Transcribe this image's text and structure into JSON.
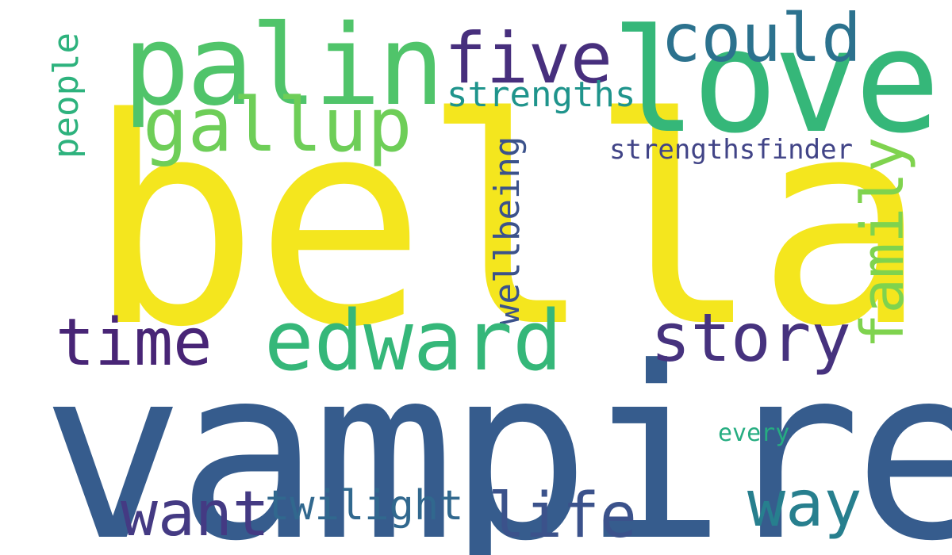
{
  "word_cloud": {
    "words": [
      {
        "key": "bella",
        "text": "bella",
        "color": "#f4e61e",
        "orientation": "horizontal"
      },
      {
        "key": "vampire",
        "text": "vampire",
        "color": "#365c8d",
        "orientation": "horizontal"
      },
      {
        "key": "love",
        "text": "love",
        "color": "#35b779",
        "orientation": "horizontal"
      },
      {
        "key": "palin",
        "text": "palin",
        "color": "#50c46a",
        "orientation": "horizontal"
      },
      {
        "key": "five",
        "text": "five",
        "color": "#472f7d",
        "orientation": "horizontal"
      },
      {
        "key": "could",
        "text": "could",
        "color": "#2c728e",
        "orientation": "horizontal"
      },
      {
        "key": "gallup",
        "text": "gallup",
        "color": "#6ece58",
        "orientation": "horizontal"
      },
      {
        "key": "strengths",
        "text": "strengths",
        "color": "#1f948c",
        "orientation": "horizontal"
      },
      {
        "key": "strengthsfinder",
        "text": "strengthsfinder",
        "color": "#414487",
        "orientation": "horizontal"
      },
      {
        "key": "people",
        "text": "people",
        "color": "#2db27d",
        "orientation": "vertical"
      },
      {
        "key": "wellbeing",
        "text": "wellbeing",
        "color": "#3b528b",
        "orientation": "vertical"
      },
      {
        "key": "family",
        "text": "family",
        "color": "#7fd34e",
        "orientation": "vertical"
      },
      {
        "key": "edward",
        "text": "edward",
        "color": "#35b779",
        "orientation": "horizontal"
      },
      {
        "key": "time",
        "text": "time",
        "color": "#482576",
        "orientation": "horizontal"
      },
      {
        "key": "story",
        "text": "story",
        "color": "#46327e",
        "orientation": "horizontal"
      },
      {
        "key": "want",
        "text": "want",
        "color": "#443a83",
        "orientation": "horizontal"
      },
      {
        "key": "twilight",
        "text": "twilight",
        "color": "#31688e",
        "orientation": "horizontal"
      },
      {
        "key": "life",
        "text": "life",
        "color": "#3b528b",
        "orientation": "horizontal"
      },
      {
        "key": "way",
        "text": "way",
        "color": "#277f8e",
        "orientation": "horizontal"
      },
      {
        "key": "every",
        "text": "every",
        "color": "#26ad81",
        "orientation": "horizontal"
      }
    ]
  }
}
